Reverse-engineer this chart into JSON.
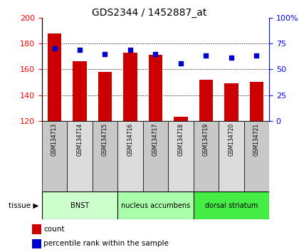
{
  "title": "GDS2344 / 1452887_at",
  "samples": [
    "GSM134713",
    "GSM134714",
    "GSM134715",
    "GSM134716",
    "GSM134717",
    "GSM134718",
    "GSM134719",
    "GSM134720",
    "GSM134721"
  ],
  "counts": [
    188,
    166,
    158,
    173,
    171,
    123,
    152,
    149,
    150
  ],
  "percentiles": [
    70,
    69,
    65,
    69,
    65,
    56,
    63,
    61,
    63
  ],
  "ylim_left": [
    120,
    200
  ],
  "ylim_right": [
    0,
    100
  ],
  "bar_color": "#cc0000",
  "dot_color": "#0000cc",
  "tissue_groups": [
    {
      "label": "BNST",
      "start": 0,
      "end": 3,
      "color": "#ccffcc"
    },
    {
      "label": "nucleus accumbens",
      "start": 3,
      "end": 6,
      "color": "#aaffaa"
    },
    {
      "label": "dorsal striatum",
      "start": 6,
      "end": 9,
      "color": "#44ee44"
    }
  ],
  "cell_colors": [
    "#c8c8c8",
    "#dcdcdc"
  ],
  "yticks_left": [
    120,
    140,
    160,
    180,
    200
  ],
  "yticks_right": [
    0,
    25,
    50,
    75,
    100
  ],
  "grid_yticks": [
    140,
    160,
    180
  ],
  "background_color": "white"
}
